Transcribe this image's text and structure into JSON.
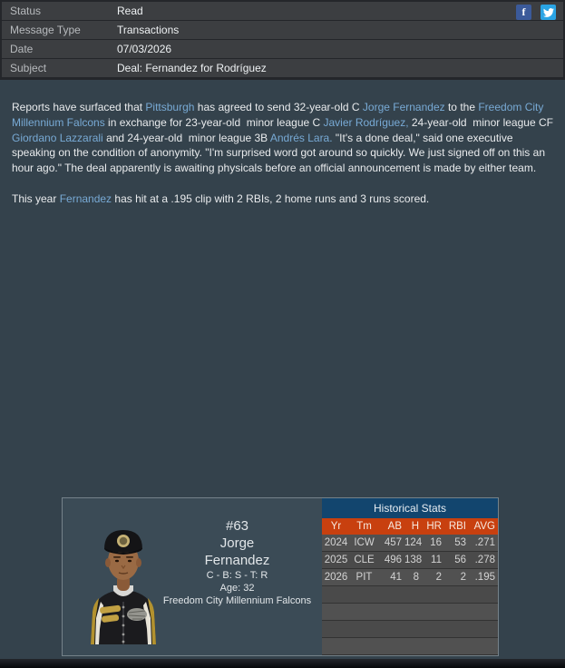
{
  "header": {
    "rows": [
      {
        "label": "Status",
        "value": "Read"
      },
      {
        "label": "Message Type",
        "value": "Transactions"
      },
      {
        "label": "Date",
        "value": "07/03/2026"
      },
      {
        "label": "Subject",
        "value": "Deal: Fernandez for Rodríguez"
      }
    ],
    "social": {
      "facebook_icon": "facebook-share",
      "facebook_color": "#3b5a9a",
      "twitter_icon": "twitter-share",
      "twitter_color": "#2aa4e4"
    }
  },
  "body": {
    "paragraph1": [
      {
        "text": "Reports have surfaced that ",
        "link": false
      },
      {
        "text": "Pittsburgh",
        "link": true
      },
      {
        "text": " has agreed to send 32-year-old C ",
        "link": false
      },
      {
        "text": "Jorge Fernandez",
        "link": true
      },
      {
        "text": " to the ",
        "link": false
      },
      {
        "text": "Freedom City Millennium Falcons",
        "link": true
      },
      {
        "text": " in exchange for 23-year-old  minor league C ",
        "link": false
      },
      {
        "text": "Javier Rodríguez,",
        "link": true
      },
      {
        "text": " 24-year-old  minor league CF ",
        "link": false
      },
      {
        "text": "Giordano Lazzarali",
        "link": true
      },
      {
        "text": " and 24-year-old  minor league 3B ",
        "link": false
      },
      {
        "text": "Andrés Lara.",
        "link": true
      },
      {
        "text": " \"It's a done deal,\" said one executive speaking on the condition of anonymity. \"I'm surprised word got around so quickly. We just signed off on this an hour ago.\" The deal apparently is awaiting physicals before an official announcement is made by either team.",
        "link": false
      }
    ],
    "paragraph2": [
      {
        "text": "This year ",
        "link": false
      },
      {
        "text": "Fernandez",
        "link": true
      },
      {
        "text": " has hit at a .195 clip with 2 RBIs, 2 home runs and 3 runs scored.",
        "link": false
      }
    ]
  },
  "player_card": {
    "number": "#63",
    "first_name": "Jorge",
    "last_name": "Fernandez",
    "position_line": "C - B: S - T: R",
    "age_line": "Age: 32",
    "team": "Freedom City Millennium Falcons",
    "photo_icon": "player-portrait"
  },
  "stats": {
    "title": "Historical Stats",
    "columns": [
      "Yr",
      "Tm",
      "AB",
      "H",
      "HR",
      "RBI",
      "AVG"
    ],
    "rows": [
      [
        "2024",
        "ICW",
        "457",
        "124",
        "16",
        "53",
        ".271"
      ],
      [
        "2025",
        "CLE",
        "496",
        "138",
        "11",
        "56",
        ".278"
      ],
      [
        "2026",
        "PIT",
        "41",
        "8",
        "2",
        "2",
        ".195"
      ]
    ],
    "empty_row_count": 4,
    "title_bg": "#12456e",
    "header_bg": "#c8400f"
  }
}
